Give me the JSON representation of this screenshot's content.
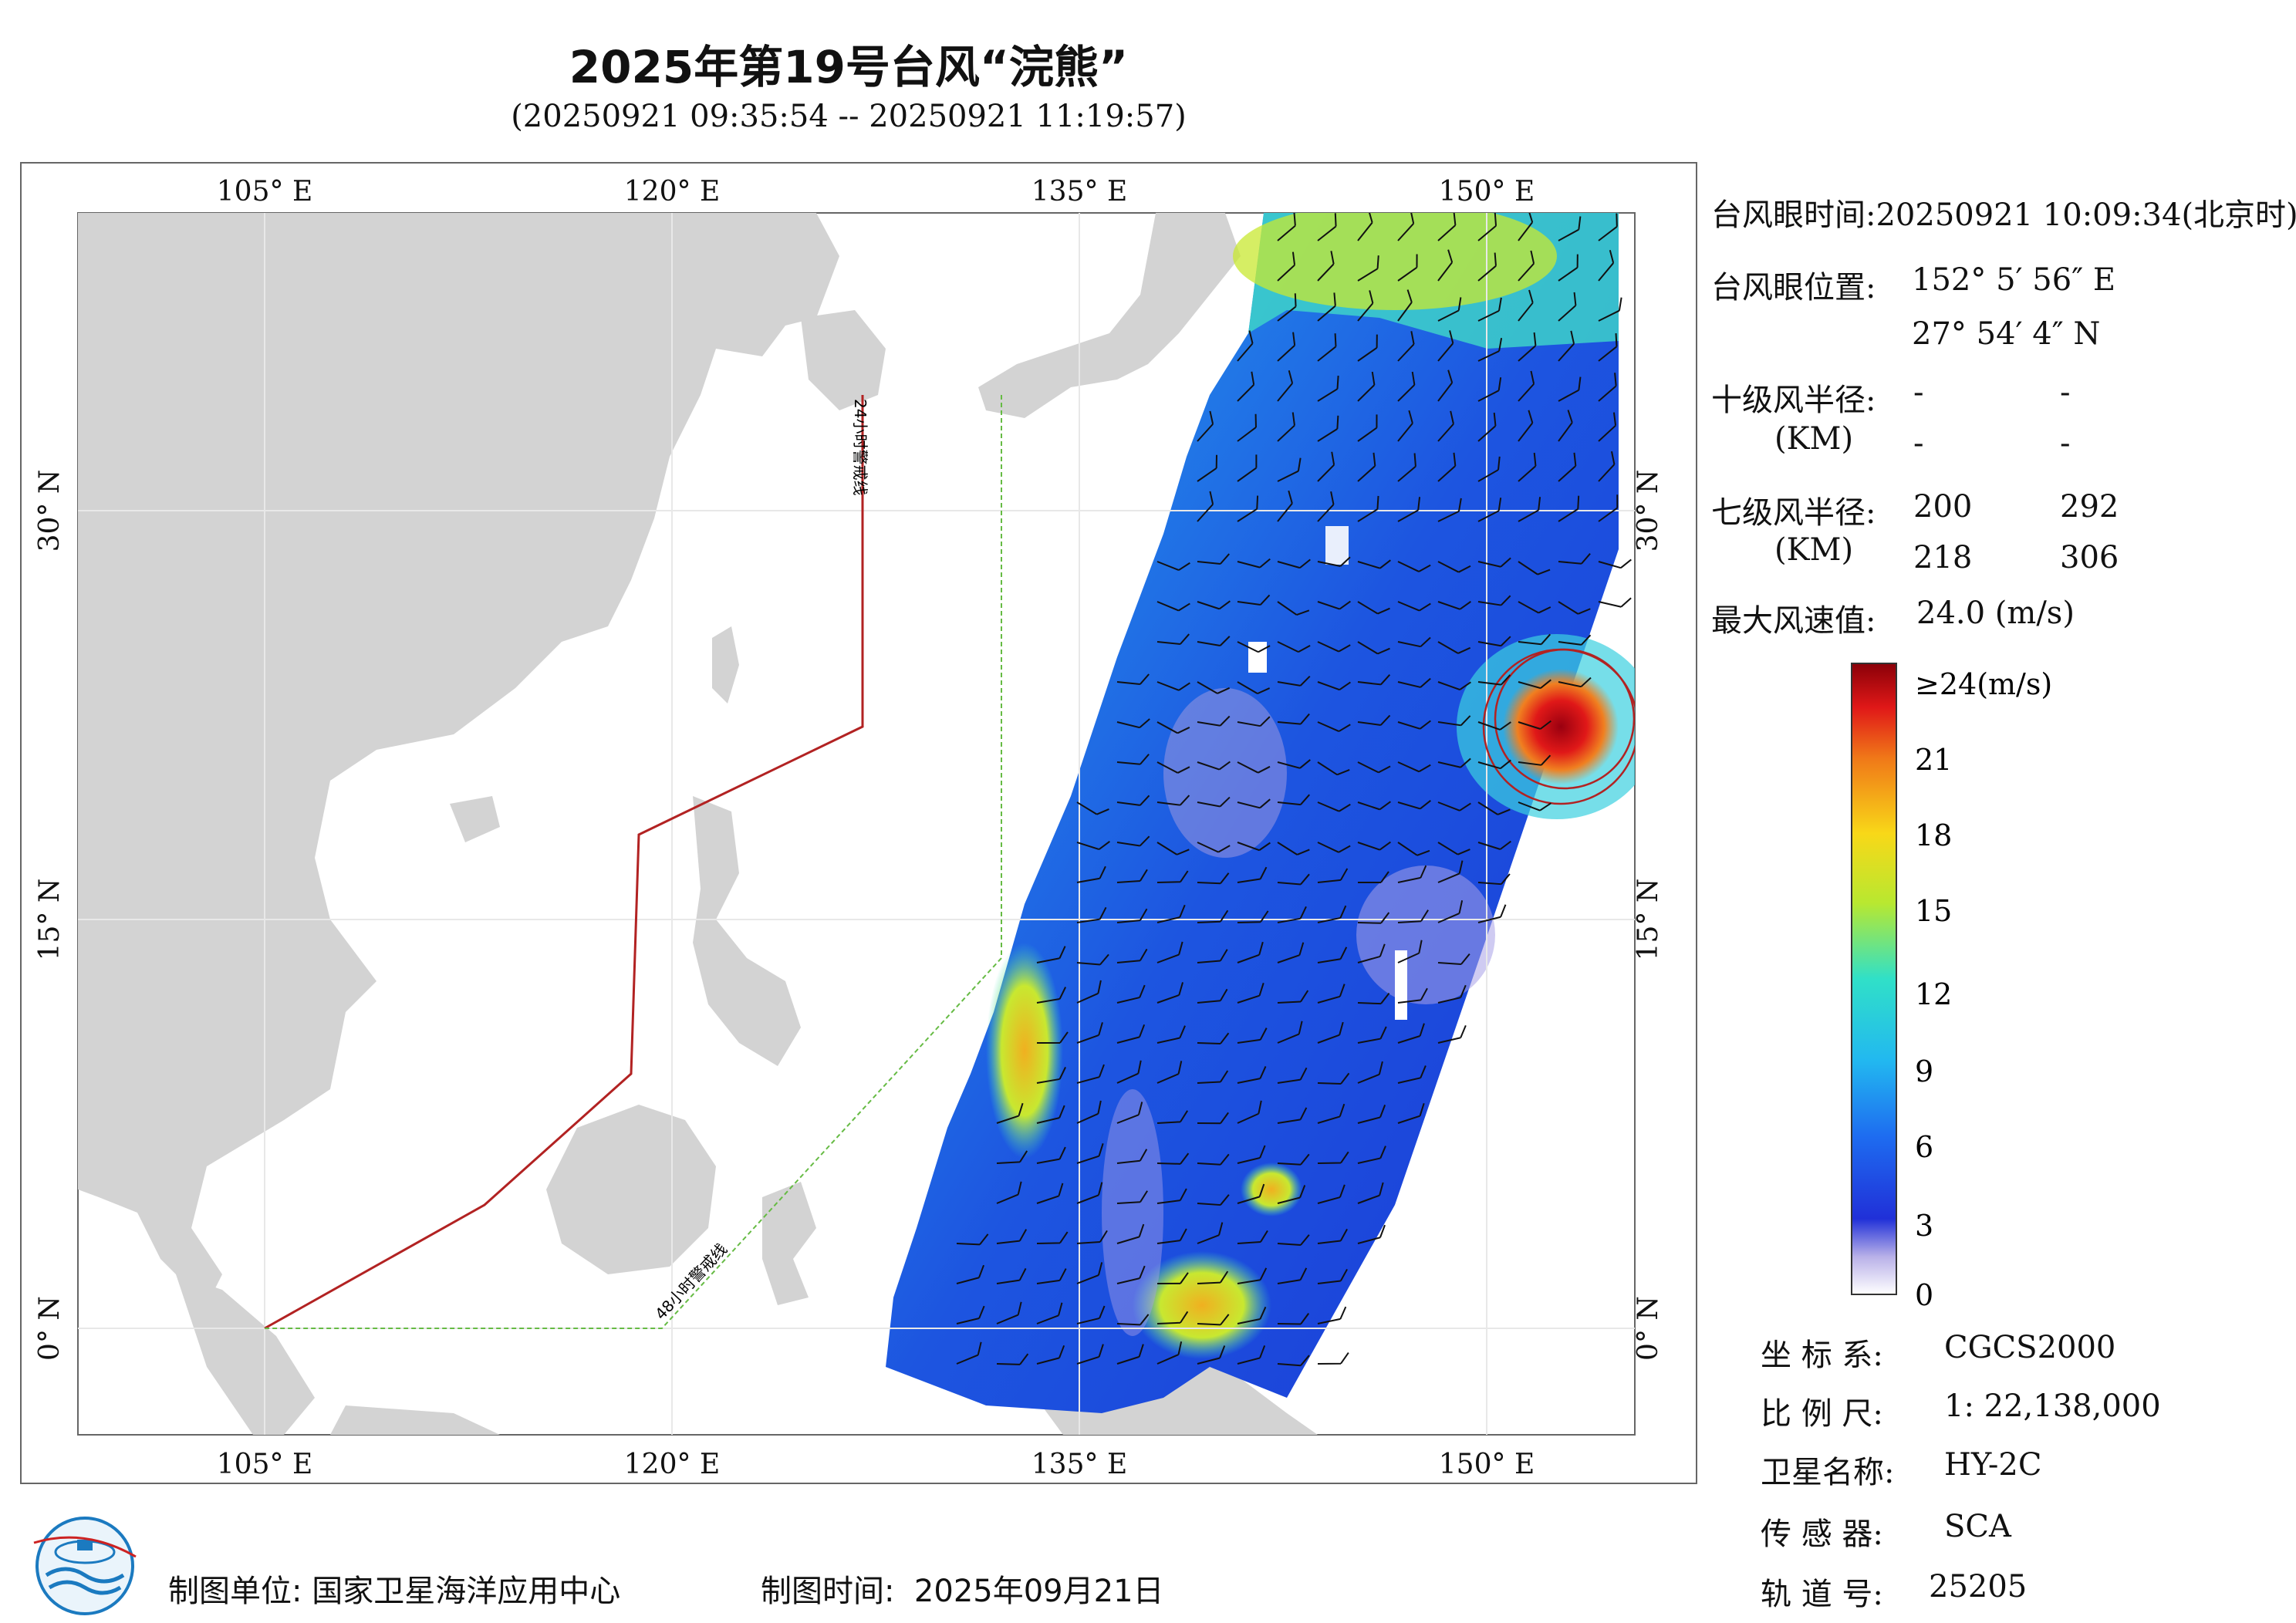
{
  "header": {
    "title": "2025年第19号台风“浣熊”",
    "subtitle": "(20250921 09:35:54 -- 20250921 11:19:57)"
  },
  "map": {
    "lon_ticks_top": [
      "105° E",
      "120° E",
      "135° E",
      "150° E"
    ],
    "lon_ticks_bottom": [
      "105° E",
      "120° E",
      "135° E",
      "150° E"
    ],
    "lat_ticks_left": [
      "30° N",
      "15° N",
      "0° N"
    ],
    "lat_ticks_right": [
      "30° N",
      "15° N",
      "0° N"
    ],
    "warning_line_24h": "24小时警戒线",
    "warning_line_48h": "48小时警戒线",
    "colors": {
      "land": "#d3d3d3",
      "sea": "#ffffff",
      "warning_24h": "#b22222",
      "warning_48h": "#66bb44",
      "typhoon_circle": "#b22222"
    }
  },
  "typhoon_info": {
    "eye_time_label": "台风眼时间:",
    "eye_time_value": "20250921 10:09:34(北京时)",
    "eye_position_label": "台风眼位置:",
    "eye_lon": "152° 5′ 56″ E",
    "eye_lat": "27° 54′ 4″ N",
    "r10_label": "十级风半径:",
    "r10_unit": "(KM)",
    "r10_values": [
      "-",
      "-",
      "-",
      "-"
    ],
    "r7_label": "七级风半径:",
    "r7_unit": "(KM)",
    "r7_values": [
      "200",
      "292",
      "218",
      "306"
    ],
    "max_wind_label": "最大风速值:",
    "max_wind_value": "24.0  (m/s)"
  },
  "colorbar": {
    "top_label": "≥24(m/s)",
    "ticks": [
      "21",
      "18",
      "15",
      "12",
      "9",
      "6",
      "3",
      "0"
    ]
  },
  "meta": {
    "crs_label": "坐 标 系:",
    "crs_value": "CGCS2000",
    "scale_label": "比 例 尺:",
    "scale_value": "1: 22,138,000",
    "satellite_label": "卫星名称:",
    "satellite_value": "HY-2C",
    "sensor_label": "传 感 器:",
    "sensor_value": "SCA",
    "orbit_label": "轨 道 号:",
    "orbit_value": "25205"
  },
  "footer": {
    "org_label": "制图单位:",
    "org_value": "国家卫星海洋应用中心",
    "time_label": "制图时间:",
    "time_value": "2025年09月21日"
  }
}
